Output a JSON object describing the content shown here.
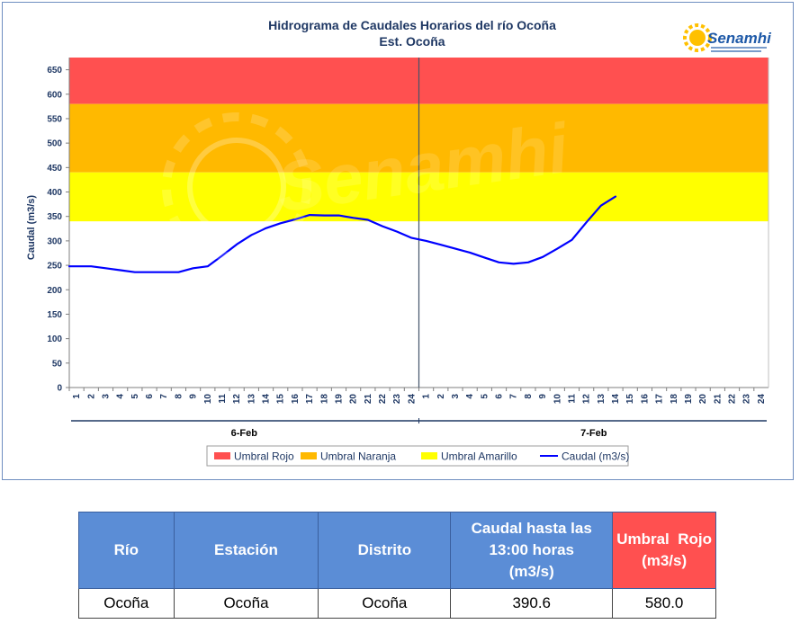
{
  "chart_data": {
    "type": "line",
    "title": "Hidrograma de Caudales Horarios del río Ocoña",
    "subtitle": "Est. Ocoña",
    "ylabel": "Caudal  (m3/s)",
    "ylim": [
      0,
      675
    ],
    "yticks": [
      0,
      50,
      100,
      150,
      200,
      250,
      300,
      350,
      400,
      450,
      500,
      550,
      600,
      650
    ],
    "x_ticks_per_day": [
      1,
      2,
      3,
      4,
      5,
      6,
      7,
      8,
      9,
      10,
      11,
      12,
      13,
      14,
      15,
      16,
      17,
      18,
      19,
      20,
      21,
      22,
      23,
      24
    ],
    "days": [
      "6-Feb",
      "7-Feb"
    ],
    "thresholds": [
      {
        "name": "Umbral Rojo",
        "from": 580,
        "to": 675,
        "color": "#ff5050"
      },
      {
        "name": "Umbral Naranja",
        "from": 440,
        "to": 580,
        "color": "#ffb900"
      },
      {
        "name": "Umbral Amarillo",
        "from": 340,
        "to": 440,
        "color": "#ffff00"
      }
    ],
    "series": [
      {
        "name": "Caudal (m3/s)",
        "color": "#0000ff",
        "day1": [
          248,
          248,
          244,
          240,
          236,
          236,
          236,
          236,
          244,
          248,
          270,
          293,
          312,
          326,
          336,
          344,
          353,
          352,
          352,
          347,
          343,
          330,
          319,
          306
        ],
        "day2": [
          300,
          292,
          284,
          276,
          266,
          256,
          253,
          256,
          267,
          284,
          302,
          338,
          372,
          390.6
        ]
      }
    ],
    "grid": false,
    "legend_position": "bottom"
  },
  "legend": [
    {
      "label": "Umbral Rojo",
      "color": "#ff5050",
      "kind": "swatch"
    },
    {
      "label": "Umbral Naranja",
      "color": "#ffb900",
      "kind": "swatch"
    },
    {
      "label": "Umbral Amarillo",
      "color": "#ffff00",
      "kind": "swatch"
    },
    {
      "label": "Caudal (m3/s)",
      "color": "#0000ff",
      "kind": "line"
    }
  ],
  "logo": {
    "text": "Senamhi"
  },
  "watermark": {
    "text": "Senamhi"
  },
  "table": {
    "headers": {
      "rio": "Río",
      "estacion": "Estación",
      "distrito": "Distrito",
      "caudal_line1": "Caudal hasta las",
      "caudal_line2": "13:00 horas",
      "caudal_line3": "(m3/s)",
      "umbral_line1": "Umbral  Rojo",
      "umbral_line2": "(m3/s)"
    },
    "row": {
      "rio": "Ocoña",
      "estacion": "Ocoña",
      "distrito": "Ocoña",
      "caudal": "390.6",
      "umbral": "580.0"
    }
  }
}
